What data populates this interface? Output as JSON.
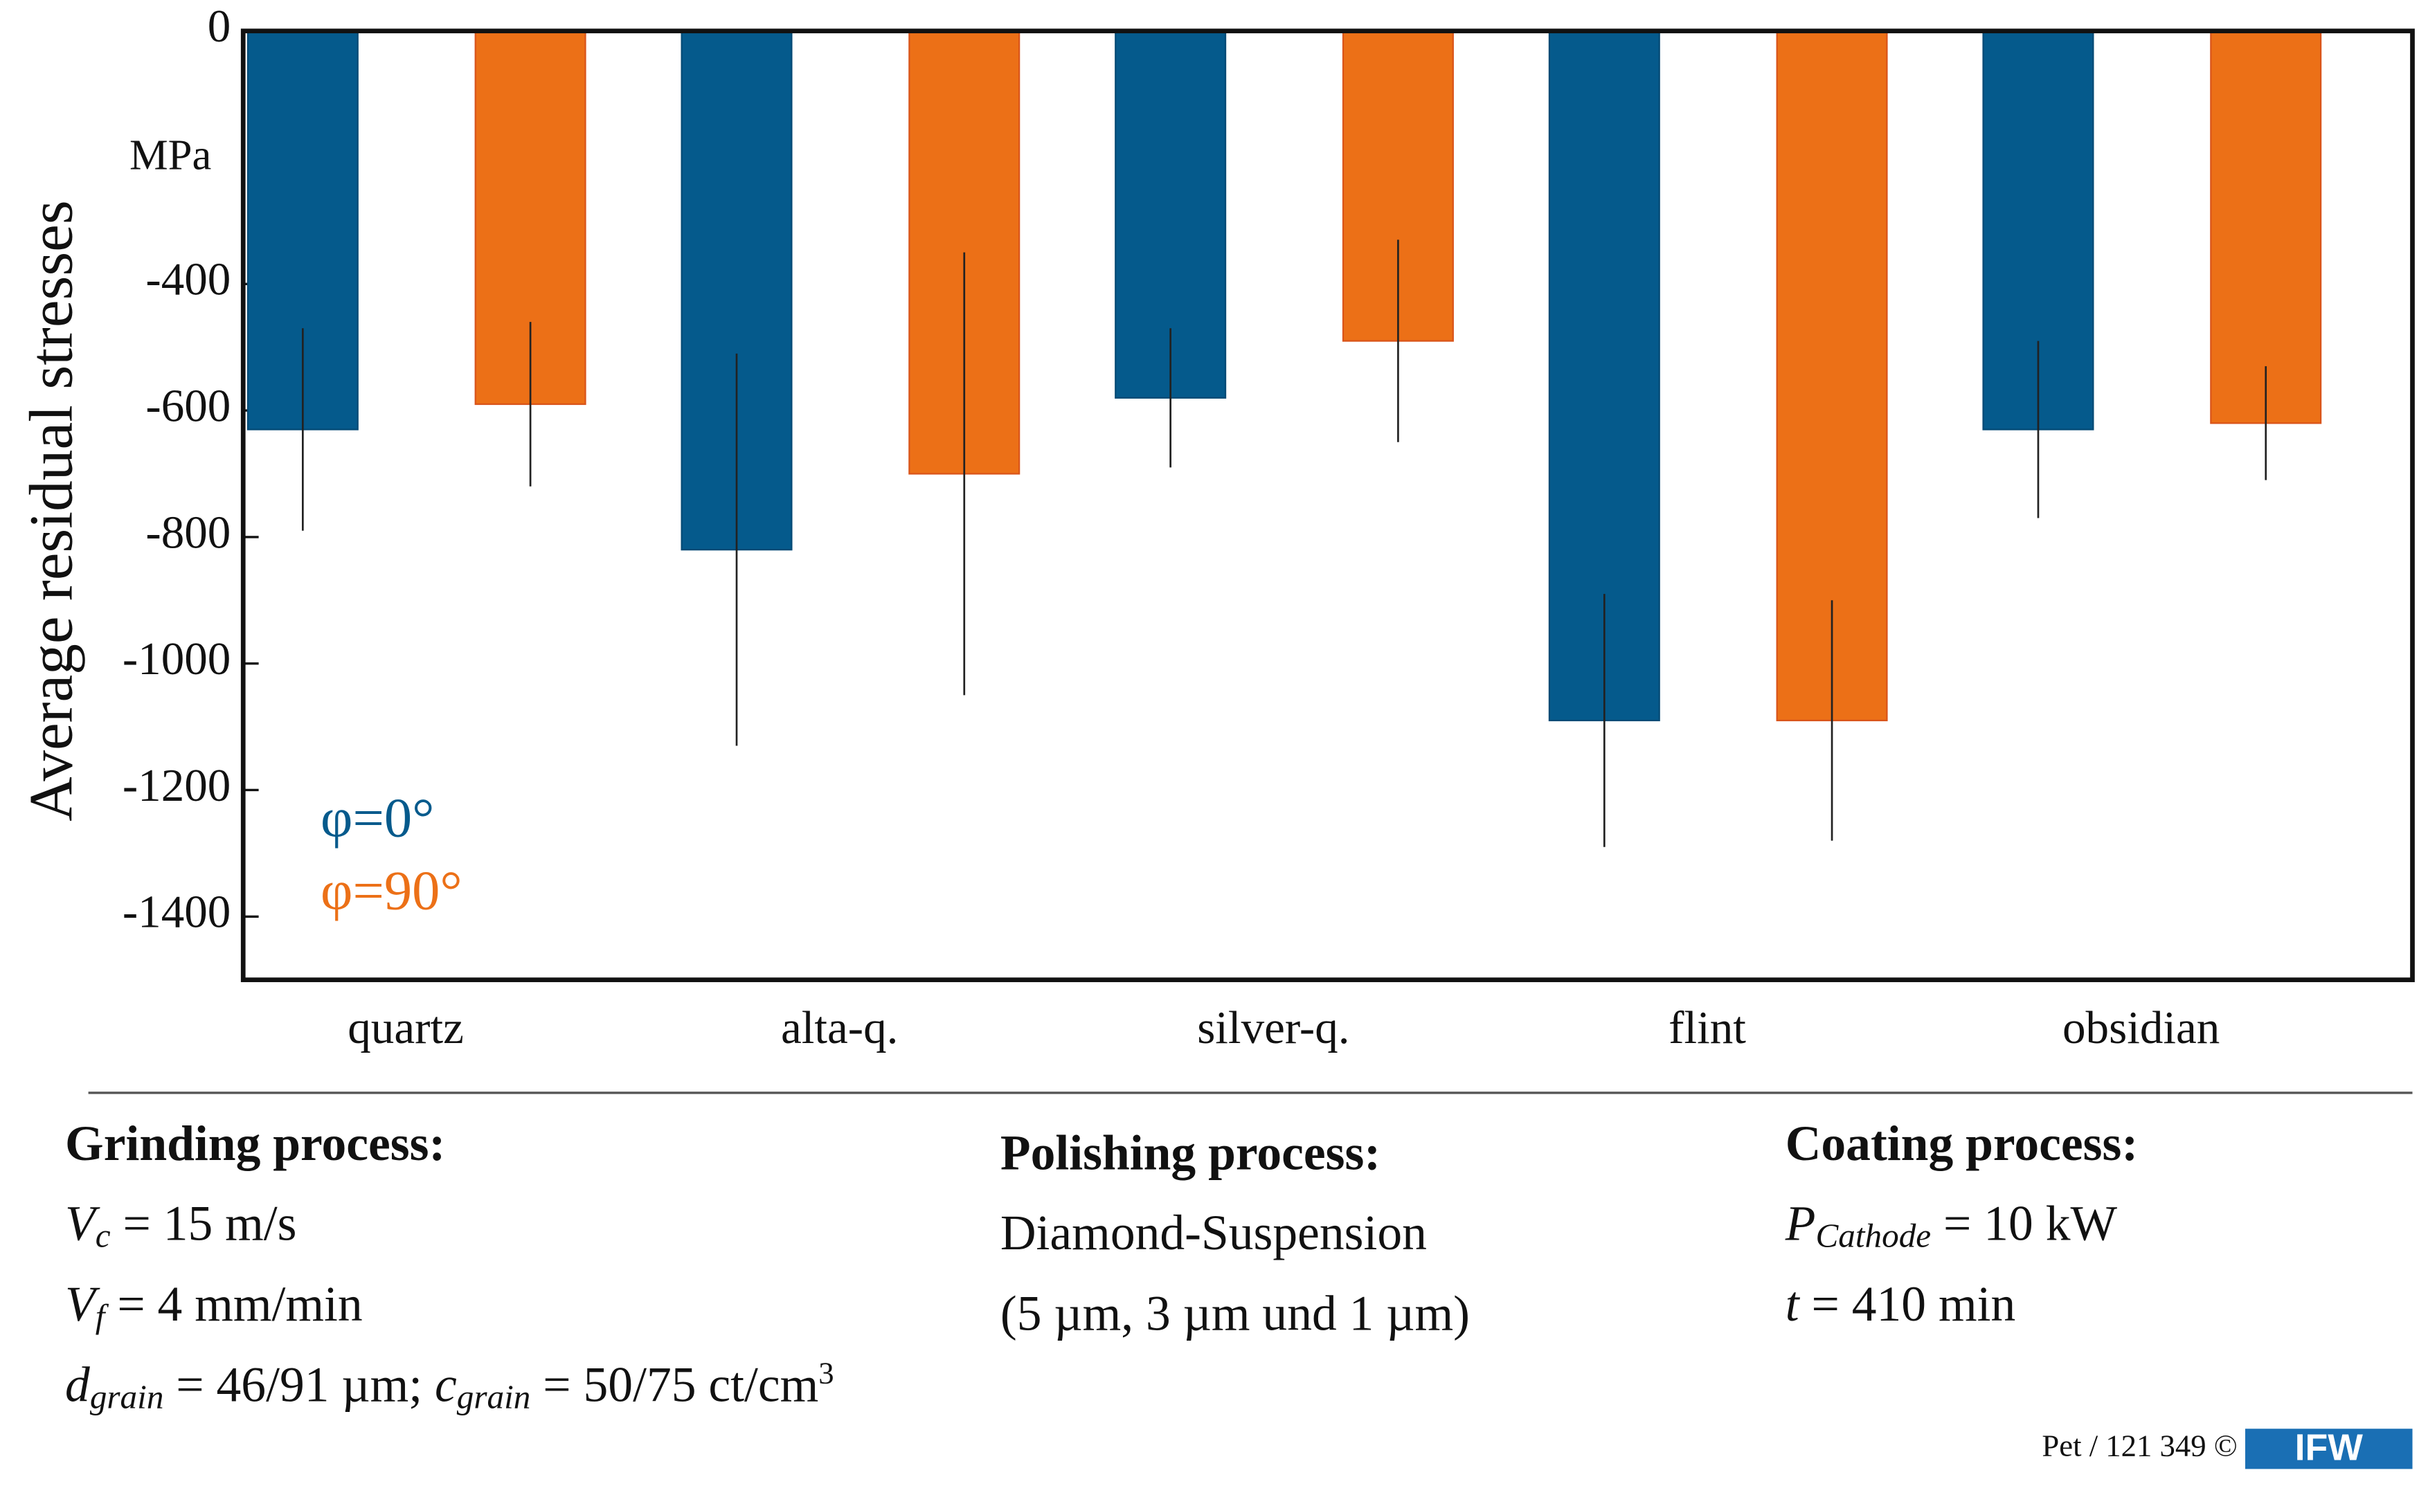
{
  "chart_data": {
    "type": "bar",
    "ylabel": "Average residual stresses",
    "y_unit": "MPa",
    "categories": [
      "quartz",
      "alta-q.",
      "silver-q.",
      "flint",
      "obsidian"
    ],
    "series": [
      {
        "name": "φ=0°",
        "color": "#055a8c",
        "values": [
          -630,
          -820,
          -580,
          -1090,
          -630
        ],
        "errors": [
          160,
          310,
          110,
          200,
          140
        ]
      },
      {
        "name": "φ=90°",
        "color": "#ec7017",
        "values": [
          -590,
          -700,
          -490,
          -1090,
          -620
        ],
        "errors": [
          130,
          350,
          160,
          190,
          90
        ]
      }
    ],
    "ylim": [
      -1500,
      0
    ],
    "yticks": [
      0,
      -400,
      -600,
      -800,
      -1000,
      -1200,
      -1400
    ],
    "grid": false,
    "legend": "lower left"
  },
  "process_info": [
    {
      "title": "Grinding process:",
      "lines": [
        [
          {
            "text": "V",
            "italic": true
          },
          {
            "text": "c",
            "italic": true,
            "sub": true
          },
          {
            "text": " = 15 m/s"
          }
        ],
        [
          {
            "text": "V",
            "italic": true
          },
          {
            "text": "f",
            "italic": true,
            "sub": true
          },
          {
            "text": " = 4 mm/min"
          }
        ],
        [
          {
            "text": "d",
            "italic": true
          },
          {
            "text": "grain",
            "italic": true,
            "sub": true
          },
          {
            "text": " = 46/91 µm; "
          },
          {
            "text": "c",
            "italic": true
          },
          {
            "text": "grain",
            "italic": true,
            "sub": true
          },
          {
            "text": " = 50/75 ct/cm"
          },
          {
            "text": "3",
            "sup": true
          }
        ]
      ]
    },
    {
      "title": "Polishing process:",
      "lines": [
        [
          {
            "text": "Diamond-Suspension"
          }
        ],
        [
          {
            "text": "(5 µm, 3 µm und 1 µm)"
          }
        ]
      ]
    },
    {
      "title": "Coating process:",
      "lines": [
        [
          {
            "text": "P",
            "italic": true
          },
          {
            "text": "Cathode",
            "italic": true,
            "sub": true
          },
          {
            "text": " = 10 kW"
          }
        ],
        [
          {
            "text": "t",
            "italic": true
          },
          {
            "text": " = 410 min"
          }
        ]
      ]
    }
  ],
  "footer": {
    "reference": "Pet / 121 349 ©",
    "logo": "IFW"
  }
}
